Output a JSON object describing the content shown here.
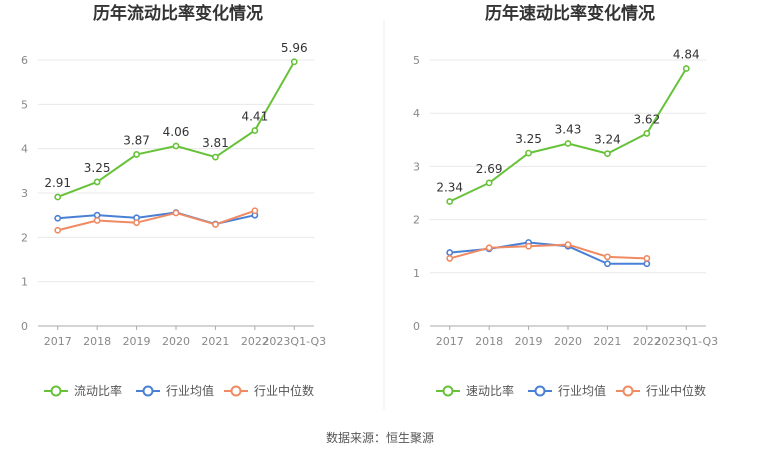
{
  "source_note": "数据来源：恒生聚源",
  "colors": {
    "main": "#67c23a",
    "avg": "#4a7fd6",
    "median": "#ef8a62",
    "grid": "#e8e8e8",
    "axis": "#aaaaaa",
    "divider": "#eeeeee"
  },
  "chart_data": [
    {
      "type": "line",
      "title": "历年流动比率变化情况",
      "categories": [
        "2017",
        "2018",
        "2019",
        "2020",
        "2021",
        "2022",
        "2023Q1-Q3"
      ],
      "ylim": [
        0,
        6
      ],
      "yticks": [
        0,
        1,
        2,
        3,
        4,
        5,
        6
      ],
      "legend_position": "bottom",
      "series": [
        {
          "name": "流动比率",
          "key": "main",
          "values": [
            2.91,
            3.25,
            3.87,
            4.06,
            3.81,
            4.41,
            5.96
          ],
          "labels": [
            "2.91",
            "3.25",
            "3.87",
            "4.06",
            "3.81",
            "4.41",
            "5.96"
          ]
        },
        {
          "name": "行业均值",
          "key": "avg",
          "values": [
            2.43,
            2.5,
            2.44,
            2.56,
            2.3,
            2.5,
            null
          ]
        },
        {
          "name": "行业中位数",
          "key": "median",
          "values": [
            2.16,
            2.38,
            2.33,
            2.55,
            2.29,
            2.6,
            null
          ]
        }
      ]
    },
    {
      "type": "line",
      "title": "历年速动比率变化情况",
      "categories": [
        "2017",
        "2018",
        "2019",
        "2020",
        "2021",
        "2022",
        "2023Q1-Q3"
      ],
      "ylim": [
        0,
        5
      ],
      "yticks": [
        0,
        1,
        2,
        3,
        4,
        5
      ],
      "legend_position": "bottom",
      "series": [
        {
          "name": "速动比率",
          "key": "main",
          "values": [
            2.34,
            2.69,
            3.25,
            3.43,
            3.24,
            3.62,
            4.84
          ],
          "labels": [
            "2.34",
            "2.69",
            "3.25",
            "3.43",
            "3.24",
            "3.62",
            "4.84"
          ]
        },
        {
          "name": "行业均值",
          "key": "avg",
          "values": [
            1.38,
            1.45,
            1.57,
            1.5,
            1.17,
            1.17,
            null
          ]
        },
        {
          "name": "行业中位数",
          "key": "median",
          "values": [
            1.27,
            1.47,
            1.5,
            1.53,
            1.3,
            1.27,
            null
          ]
        }
      ]
    }
  ]
}
